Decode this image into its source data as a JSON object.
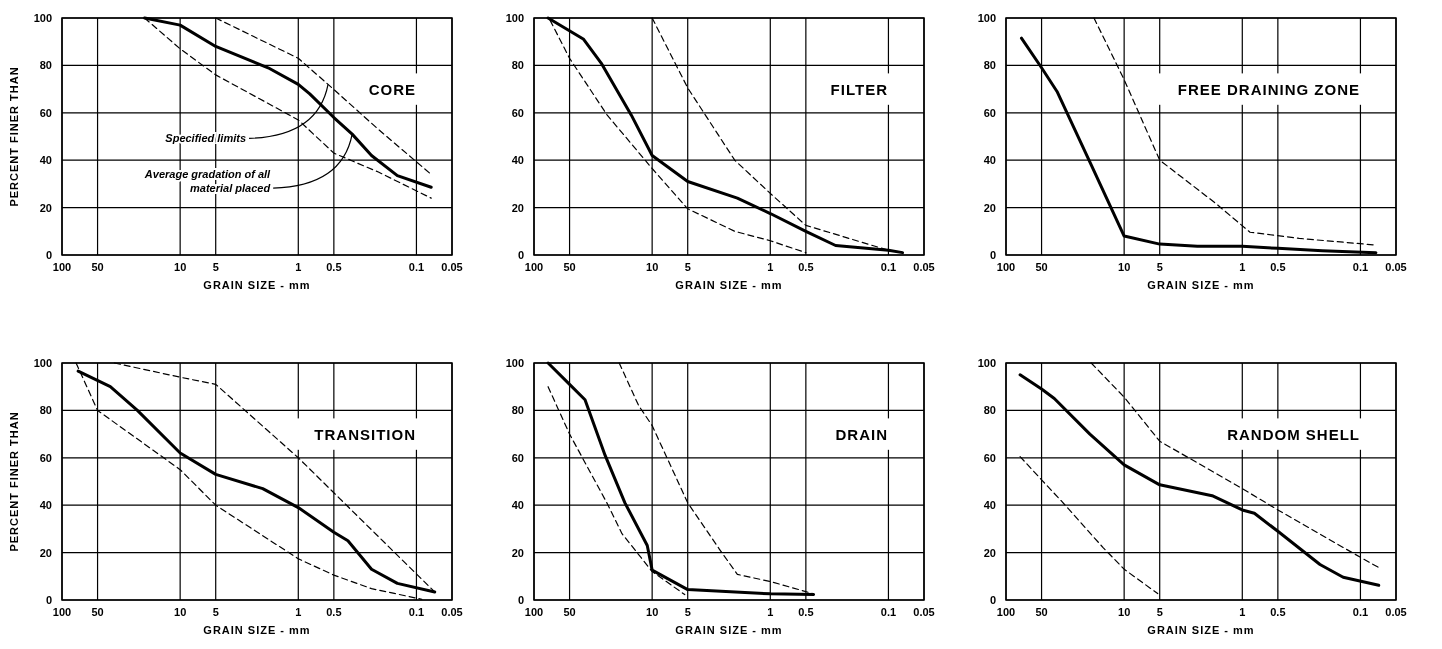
{
  "chart_data": [
    {
      "type": "line",
      "title": "CORE",
      "xlabel": "GRAIN SIZE - mm",
      "ylabel": "PERCENT FINER THAN",
      "log": "x",
      "xlim": [
        100,
        0.05
      ],
      "xticks": [
        100,
        50,
        10,
        5,
        1,
        0.5,
        0.1,
        0.05
      ],
      "ylim": [
        0,
        100
      ],
      "yticks": [
        0,
        20,
        40,
        60,
        80,
        100
      ],
      "grid": true,
      "marker": "none",
      "annotations": [
        {
          "text": "Specified limits",
          "x": 0.56,
          "y": 72
        },
        {
          "text": "Average gradation of all material placed",
          "x": 0.35,
          "y": 51
        }
      ],
      "series": [
        {
          "color": "#000000",
          "line_style": "solid",
          "x": [
            20,
            10,
            5,
            1.8,
            1,
            0.8,
            0.5,
            0.35,
            0.24,
            0.145,
            0.075
          ],
          "values": [
            100,
            97,
            88,
            79,
            72,
            68,
            58,
            51,
            42,
            33.5,
            28.6
          ]
        },
        {
          "color": "#000000",
          "line_style": "dashed",
          "x": [
            5,
            1,
            0.56,
            0.21,
            0.075
          ],
          "values": [
            100,
            83,
            72,
            53,
            34
          ]
        },
        {
          "color": "#000000",
          "line_style": "dashed",
          "x": [
            20,
            10,
            5,
            1,
            0.5,
            0.21,
            0.075
          ],
          "values": [
            100,
            87,
            76,
            57,
            43,
            35,
            24
          ]
        }
      ]
    },
    {
      "type": "line",
      "title": "FILTER",
      "xlabel": "GRAIN SIZE - mm",
      "log": "x",
      "xlim": [
        100,
        0.05
      ],
      "xticks": [
        100,
        50,
        10,
        5,
        1,
        0.5,
        0.1,
        0.05
      ],
      "ylim": [
        0,
        100
      ],
      "yticks": [
        0,
        20,
        40,
        60,
        80,
        100
      ],
      "grid": true,
      "marker": "none",
      "series": [
        {
          "color": "#000000",
          "line_style": "solid",
          "x": [
            76,
            38,
            27,
            15,
            10,
            5,
            1.9,
            1,
            0.5,
            0.28,
            0.1,
            0.076
          ],
          "values": [
            100,
            91,
            81,
            59,
            42,
            31,
            24,
            17.5,
            10,
            4,
            2,
            1
          ]
        },
        {
          "color": "#000000",
          "line_style": "dashed",
          "x": [
            10,
            5,
            2,
            1,
            0.5,
            0.1
          ],
          "values": [
            100,
            70.5,
            40,
            26,
            12.5,
            2
          ]
        },
        {
          "color": "#000000",
          "line_style": "dashed",
          "x": [
            73,
            50,
            24,
            10,
            5,
            2,
            1,
            0.5
          ],
          "values": [
            99,
            83,
            59,
            36.5,
            19.5,
            10,
            6,
            1
          ]
        }
      ]
    },
    {
      "type": "line",
      "title": "FREE DRAINING ZONE",
      "xlabel": "GRAIN SIZE - mm",
      "log": "x",
      "xlim": [
        100,
        0.05
      ],
      "xticks": [
        100,
        50,
        10,
        5,
        1,
        0.5,
        0.1,
        0.05
      ],
      "ylim": [
        0,
        100
      ],
      "yticks": [
        0,
        20,
        40,
        60,
        80,
        100
      ],
      "grid": true,
      "marker": "none",
      "series": [
        {
          "color": "#000000",
          "line_style": "solid",
          "x": [
            74,
            50,
            37,
            19,
            10,
            5,
            2.4,
            1,
            0.5,
            0.21,
            0.074
          ],
          "values": [
            91.5,
            79,
            69,
            38,
            8,
            4.6,
            3.7,
            3.7,
            2.8,
            1.8,
            1
          ]
        },
        {
          "color": "#000000",
          "line_style": "dashed",
          "x": [
            18,
            10,
            5,
            1.7,
            0.86,
            0.33,
            0.074
          ],
          "values": [
            100,
            74,
            40,
            22,
            9.6,
            7,
            4.2
          ]
        }
      ]
    },
    {
      "type": "line",
      "title": "TRANSITION",
      "xlabel": "GRAIN SIZE - mm",
      "ylabel": "PERCENT FINER THAN",
      "log": "x",
      "xlim": [
        100,
        0.05
      ],
      "xticks": [
        100,
        50,
        10,
        5,
        1,
        0.5,
        0.1,
        0.05
      ],
      "ylim": [
        0,
        100
      ],
      "yticks": [
        0,
        20,
        40,
        60,
        80,
        100
      ],
      "grid": true,
      "marker": "none",
      "series": [
        {
          "color": "#000000",
          "line_style": "solid",
          "x": [
            73,
            39,
            23,
            10,
            5,
            2,
            1,
            0.5,
            0.38,
            0.24,
            0.145,
            0.07
          ],
          "values": [
            96.6,
            90,
            80,
            62,
            53,
            47,
            39,
            28.6,
            25,
            13,
            7,
            3.4
          ]
        },
        {
          "color": "#000000",
          "line_style": "dashed",
          "x": [
            36,
            10,
            5,
            1,
            0.45,
            0.07
          ],
          "values": [
            100,
            94,
            91,
            60,
            43,
            3.4
          ]
        },
        {
          "color": "#000000",
          "line_style": "dashed",
          "x": [
            76,
            50,
            10,
            5,
            1,
            0.5,
            0.24,
            0.09
          ],
          "values": [
            100,
            80,
            55,
            40,
            17.4,
            10.5,
            4.8,
            0.3
          ]
        }
      ]
    },
    {
      "type": "line",
      "title": "DRAIN",
      "xlabel": "GRAIN SIZE - mm",
      "log": "x",
      "xlim": [
        100,
        0.05
      ],
      "xticks": [
        100,
        50,
        10,
        5,
        1,
        0.5,
        0.1,
        0.05
      ],
      "ylim": [
        0,
        100
      ],
      "yticks": [
        0,
        20,
        40,
        60,
        80,
        100
      ],
      "grid": true,
      "marker": "none",
      "series": [
        {
          "color": "#000000",
          "line_style": "solid",
          "x": [
            76,
            50,
            37,
            25,
            17,
            11,
            10,
            5,
            1,
            0.43
          ],
          "values": [
            100,
            91,
            84.5,
            61,
            41,
            23,
            12.6,
            4.4,
            2.6,
            2.3
          ]
        },
        {
          "color": "#000000",
          "line_style": "dashed",
          "x": [
            19,
            13,
            10,
            5,
            2.7,
            1.9,
            1,
            0.43
          ],
          "values": [
            100,
            82,
            73.6,
            41,
            21.5,
            10.8,
            7.8,
            2.6
          ]
        },
        {
          "color": "#000000",
          "line_style": "dashed",
          "x": [
            76,
            50,
            24,
            18,
            10,
            5.3
          ],
          "values": [
            90,
            70,
            40.7,
            28,
            12,
            2.3
          ]
        }
      ]
    },
    {
      "type": "line",
      "title": "RANDOM SHELL",
      "xlabel": "GRAIN SIZE - mm",
      "log": "x",
      "xlim": [
        100,
        0.05
      ],
      "xticks": [
        100,
        50,
        10,
        5,
        1,
        0.5,
        0.1,
        0.05
      ],
      "ylim": [
        0,
        100
      ],
      "yticks": [
        0,
        20,
        40,
        60,
        80,
        100
      ],
      "grid": true,
      "marker": "none",
      "series": [
        {
          "color": "#000000",
          "line_style": "solid",
          "x": [
            76,
            50,
            39,
            19.5,
            10,
            5,
            1.8,
            1,
            0.79,
            0.5,
            0.22,
            0.14,
            0.07
          ],
          "values": [
            95,
            89,
            85,
            70,
            57,
            48.6,
            44,
            38,
            36.6,
            29,
            15,
            9.6,
            6.2
          ]
        },
        {
          "color": "#000000",
          "line_style": "dashed",
          "x": [
            19,
            10,
            5,
            1,
            0.5,
            0.1,
            0.07
          ],
          "values": [
            100,
            85.6,
            67,
            47,
            38,
            18,
            13.7
          ]
        },
        {
          "color": "#000000",
          "line_style": "dashed",
          "x": [
            76,
            50,
            34,
            15,
            10,
            5.2
          ],
          "values": [
            60.5,
            50.7,
            41.8,
            22,
            13,
            2.7
          ]
        }
      ]
    }
  ]
}
